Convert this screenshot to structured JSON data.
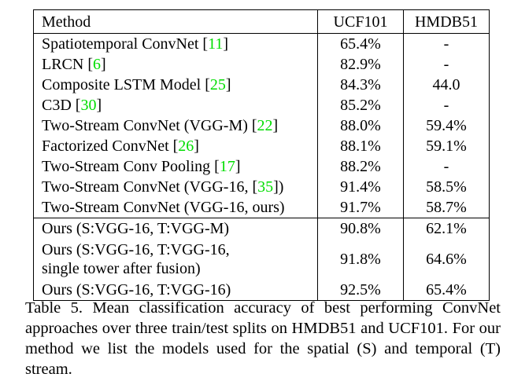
{
  "table": {
    "headers": [
      "Method",
      "UCF101",
      "HMDB51"
    ],
    "section_a": [
      {
        "method": "Spatiotemporal ConvNet [",
        "ref": "11",
        "suffix": "]",
        "ucf": "65.4%",
        "hmdb": "-"
      },
      {
        "method": "LRCN [",
        "ref": "6",
        "suffix": "]",
        "ucf": "82.9%",
        "hmdb": "-"
      },
      {
        "method": "Composite LSTM Model [",
        "ref": "25",
        "suffix": "]",
        "ucf": "84.3%",
        "hmdb": "44.0"
      },
      {
        "method": "C3D [",
        "ref": "30",
        "suffix": "]",
        "ucf": "85.2%",
        "hmdb": "-"
      },
      {
        "method": "Two-Stream ConvNet (VGG-M) [",
        "ref": "22",
        "suffix": "]",
        "ucf": "88.0%",
        "hmdb": "59.4%"
      },
      {
        "method": "Factorized ConvNet [",
        "ref": "26",
        "suffix": "]",
        "ucf": "88.1%",
        "hmdb": "59.1%"
      },
      {
        "method": "Two-Stream Conv Pooling [",
        "ref": "17",
        "suffix": "]",
        "ucf": "88.2%",
        "hmdb": "-"
      },
      {
        "method": "Two-Stream ConvNet (VGG-16, [",
        "ref": "35",
        "suffix": "])",
        "ucf": "91.4%",
        "hmdb": "58.5%"
      },
      {
        "method": "Two-Stream ConvNet (VGG-16, ours)",
        "ref": "",
        "suffix": "",
        "ucf": "91.7%",
        "hmdb": "58.7%"
      }
    ],
    "section_b": [
      {
        "method_line1": "Ours (S:VGG-16, T:VGG-M)",
        "method_line2": "",
        "ucf": "90.8%",
        "hmdb": "62.1%"
      },
      {
        "method_line1": "Ours (S:VGG-16, T:VGG-16,",
        "method_line2": "single tower after fusion)",
        "ucf": "91.8%",
        "hmdb": "64.6%"
      },
      {
        "method_line1": "Ours (S:VGG-16, T:VGG-16)",
        "method_line2": "",
        "ucf": "92.5%",
        "hmdb": "65.4%"
      }
    ]
  },
  "caption": "Table 5. Mean classification accuracy of best performing ConvNet approaches over three train/test splits on HMDB51 and UCF101. For our method we list the models used for the spatial (S) and temporal (T) stream.",
  "colors": {
    "reference_link": "#00dd00"
  }
}
